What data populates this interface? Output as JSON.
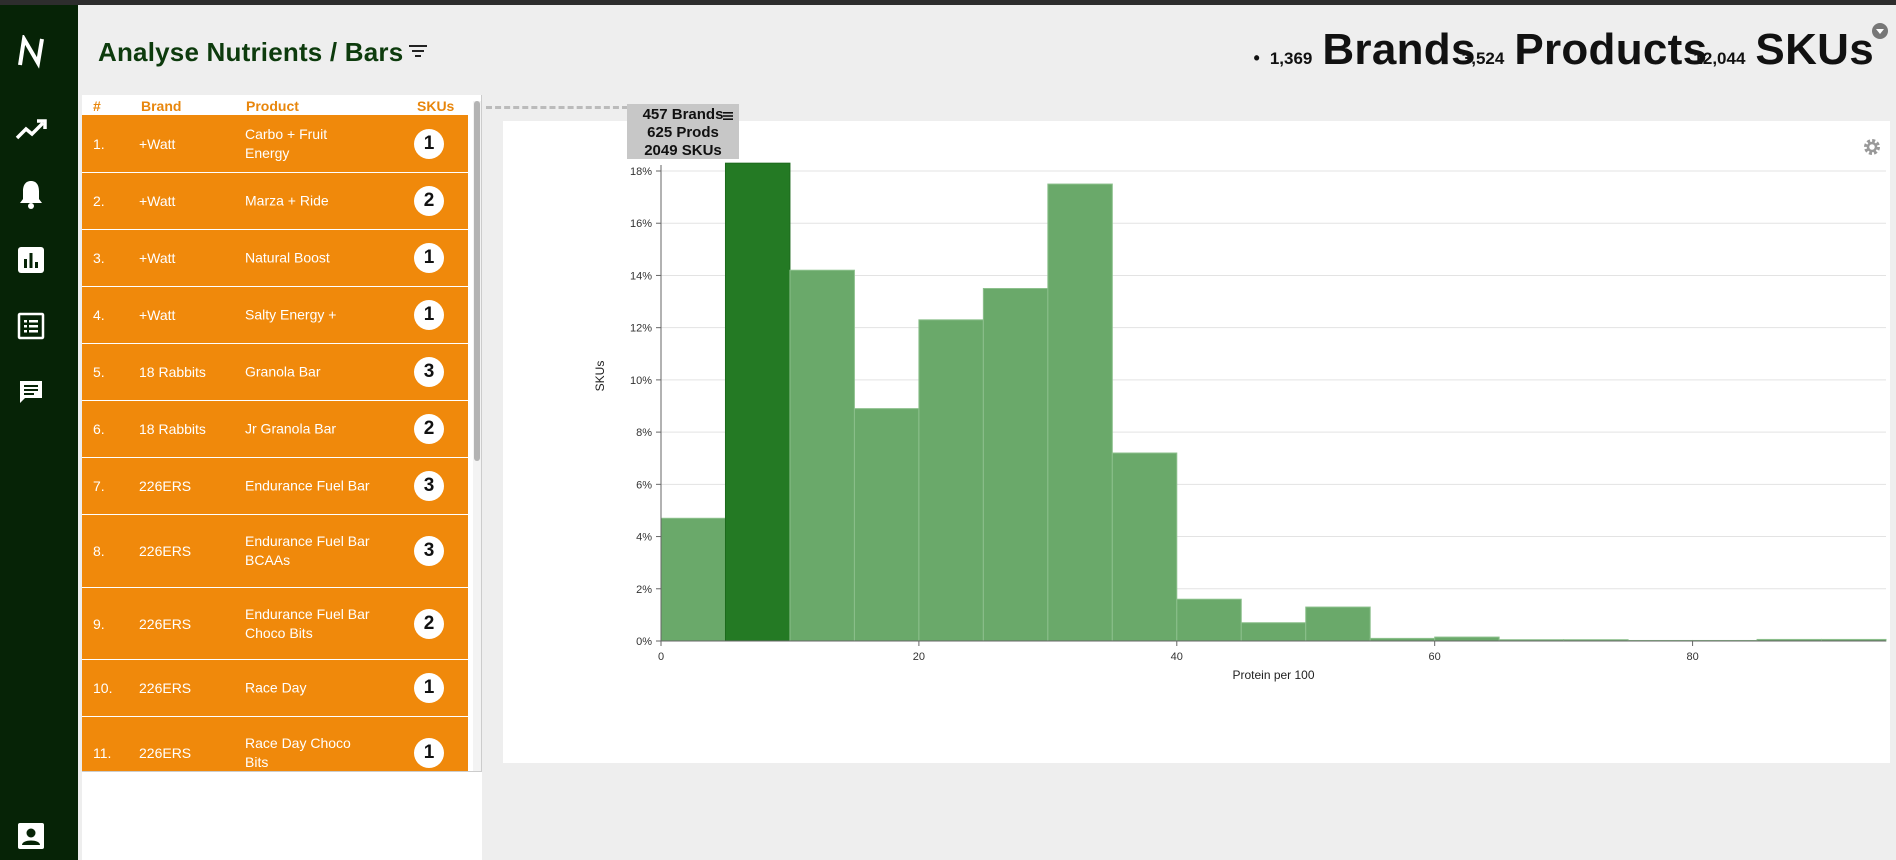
{
  "header": {
    "title": "Analyse Nutrients / Bars",
    "stats": {
      "brands_count": "1,369",
      "brands_label": "Brands",
      "products_count": "3,524",
      "products_label": "Products",
      "skus_count": "12,044",
      "skus_label": "SKUs"
    }
  },
  "sidebar": {
    "items": [
      {
        "icon": "logo-icon"
      },
      {
        "icon": "trend-icon"
      },
      {
        "icon": "bell-icon"
      },
      {
        "icon": "bar-chart-icon"
      },
      {
        "icon": "list-icon"
      },
      {
        "icon": "chat-icon"
      },
      {
        "icon": "account-icon"
      }
    ]
  },
  "table": {
    "columns": [
      "#",
      "Brand",
      "Product",
      "SKUs"
    ],
    "rows": [
      {
        "idx": "1.",
        "brand": "+Watt",
        "product": "Carbo + Fruit Energy",
        "skus": "1"
      },
      {
        "idx": "2.",
        "brand": "+Watt",
        "product": "Marza + Ride",
        "skus": "2"
      },
      {
        "idx": "3.",
        "brand": "+Watt",
        "product": "Natural Boost",
        "skus": "1"
      },
      {
        "idx": "4.",
        "brand": "+Watt",
        "product": "Salty Energy +",
        "skus": "1"
      },
      {
        "idx": "5.",
        "brand": "18 Rabbits",
        "product": "Granola Bar",
        "skus": "3"
      },
      {
        "idx": "6.",
        "brand": "18 Rabbits",
        "product": "Jr Granola Bar",
        "skus": "2"
      },
      {
        "idx": "7.",
        "brand": "226ERS",
        "product": "Endurance Fuel Bar",
        "skus": "3"
      },
      {
        "idx": "8.",
        "brand": "226ERS",
        "product": "Endurance Fuel Bar BCAAs",
        "skus": "3"
      },
      {
        "idx": "9.",
        "brand": "226ERS",
        "product": "Endurance Fuel Bar Choco Bits",
        "skus": "2"
      },
      {
        "idx": "10.",
        "brand": "226ERS",
        "product": "Race Day",
        "skus": "1"
      },
      {
        "idx": "11.",
        "brand": "226ERS",
        "product": "Race Day Choco Bits",
        "skus": "1"
      }
    ]
  },
  "tooltip": {
    "brands": "457 Brands",
    "prods": "625 Prods",
    "skus": "2049 SKUs"
  },
  "colors": {
    "sidebar": "#062306",
    "row": "#f0890b",
    "bar": "#6aa96a",
    "bar_highlight": "#247a24"
  },
  "chart_data": {
    "type": "bar",
    "xlabel": "Protein per 100",
    "ylabel": "SKUs",
    "bin_width": 5,
    "bins_start": [
      0,
      5,
      10,
      15,
      20,
      25,
      30,
      35,
      40,
      45,
      50,
      55,
      60,
      65,
      70,
      75,
      80,
      85,
      90
    ],
    "values": [
      4.7,
      18.3,
      14.2,
      8.9,
      12.3,
      13.5,
      17.5,
      7.2,
      1.6,
      0.7,
      1.3,
      0.1,
      0.15,
      0.05,
      0.05,
      0.02,
      0.02,
      0.06,
      0.06
    ],
    "highlight_index": 1,
    "xlim": [
      0,
      95
    ],
    "ylim": [
      0,
      18
    ],
    "xticks": [
      "0",
      "20",
      "40",
      "60",
      "80"
    ],
    "xtick_values": [
      0,
      20,
      40,
      60,
      80
    ],
    "yticks": [
      "0%",
      "2%",
      "4%",
      "6%",
      "8%",
      "10%",
      "12%",
      "14%",
      "16%",
      "18%"
    ],
    "ytick_values": [
      0,
      2,
      4,
      6,
      8,
      10,
      12,
      14,
      16,
      18
    ],
    "grid": true
  }
}
